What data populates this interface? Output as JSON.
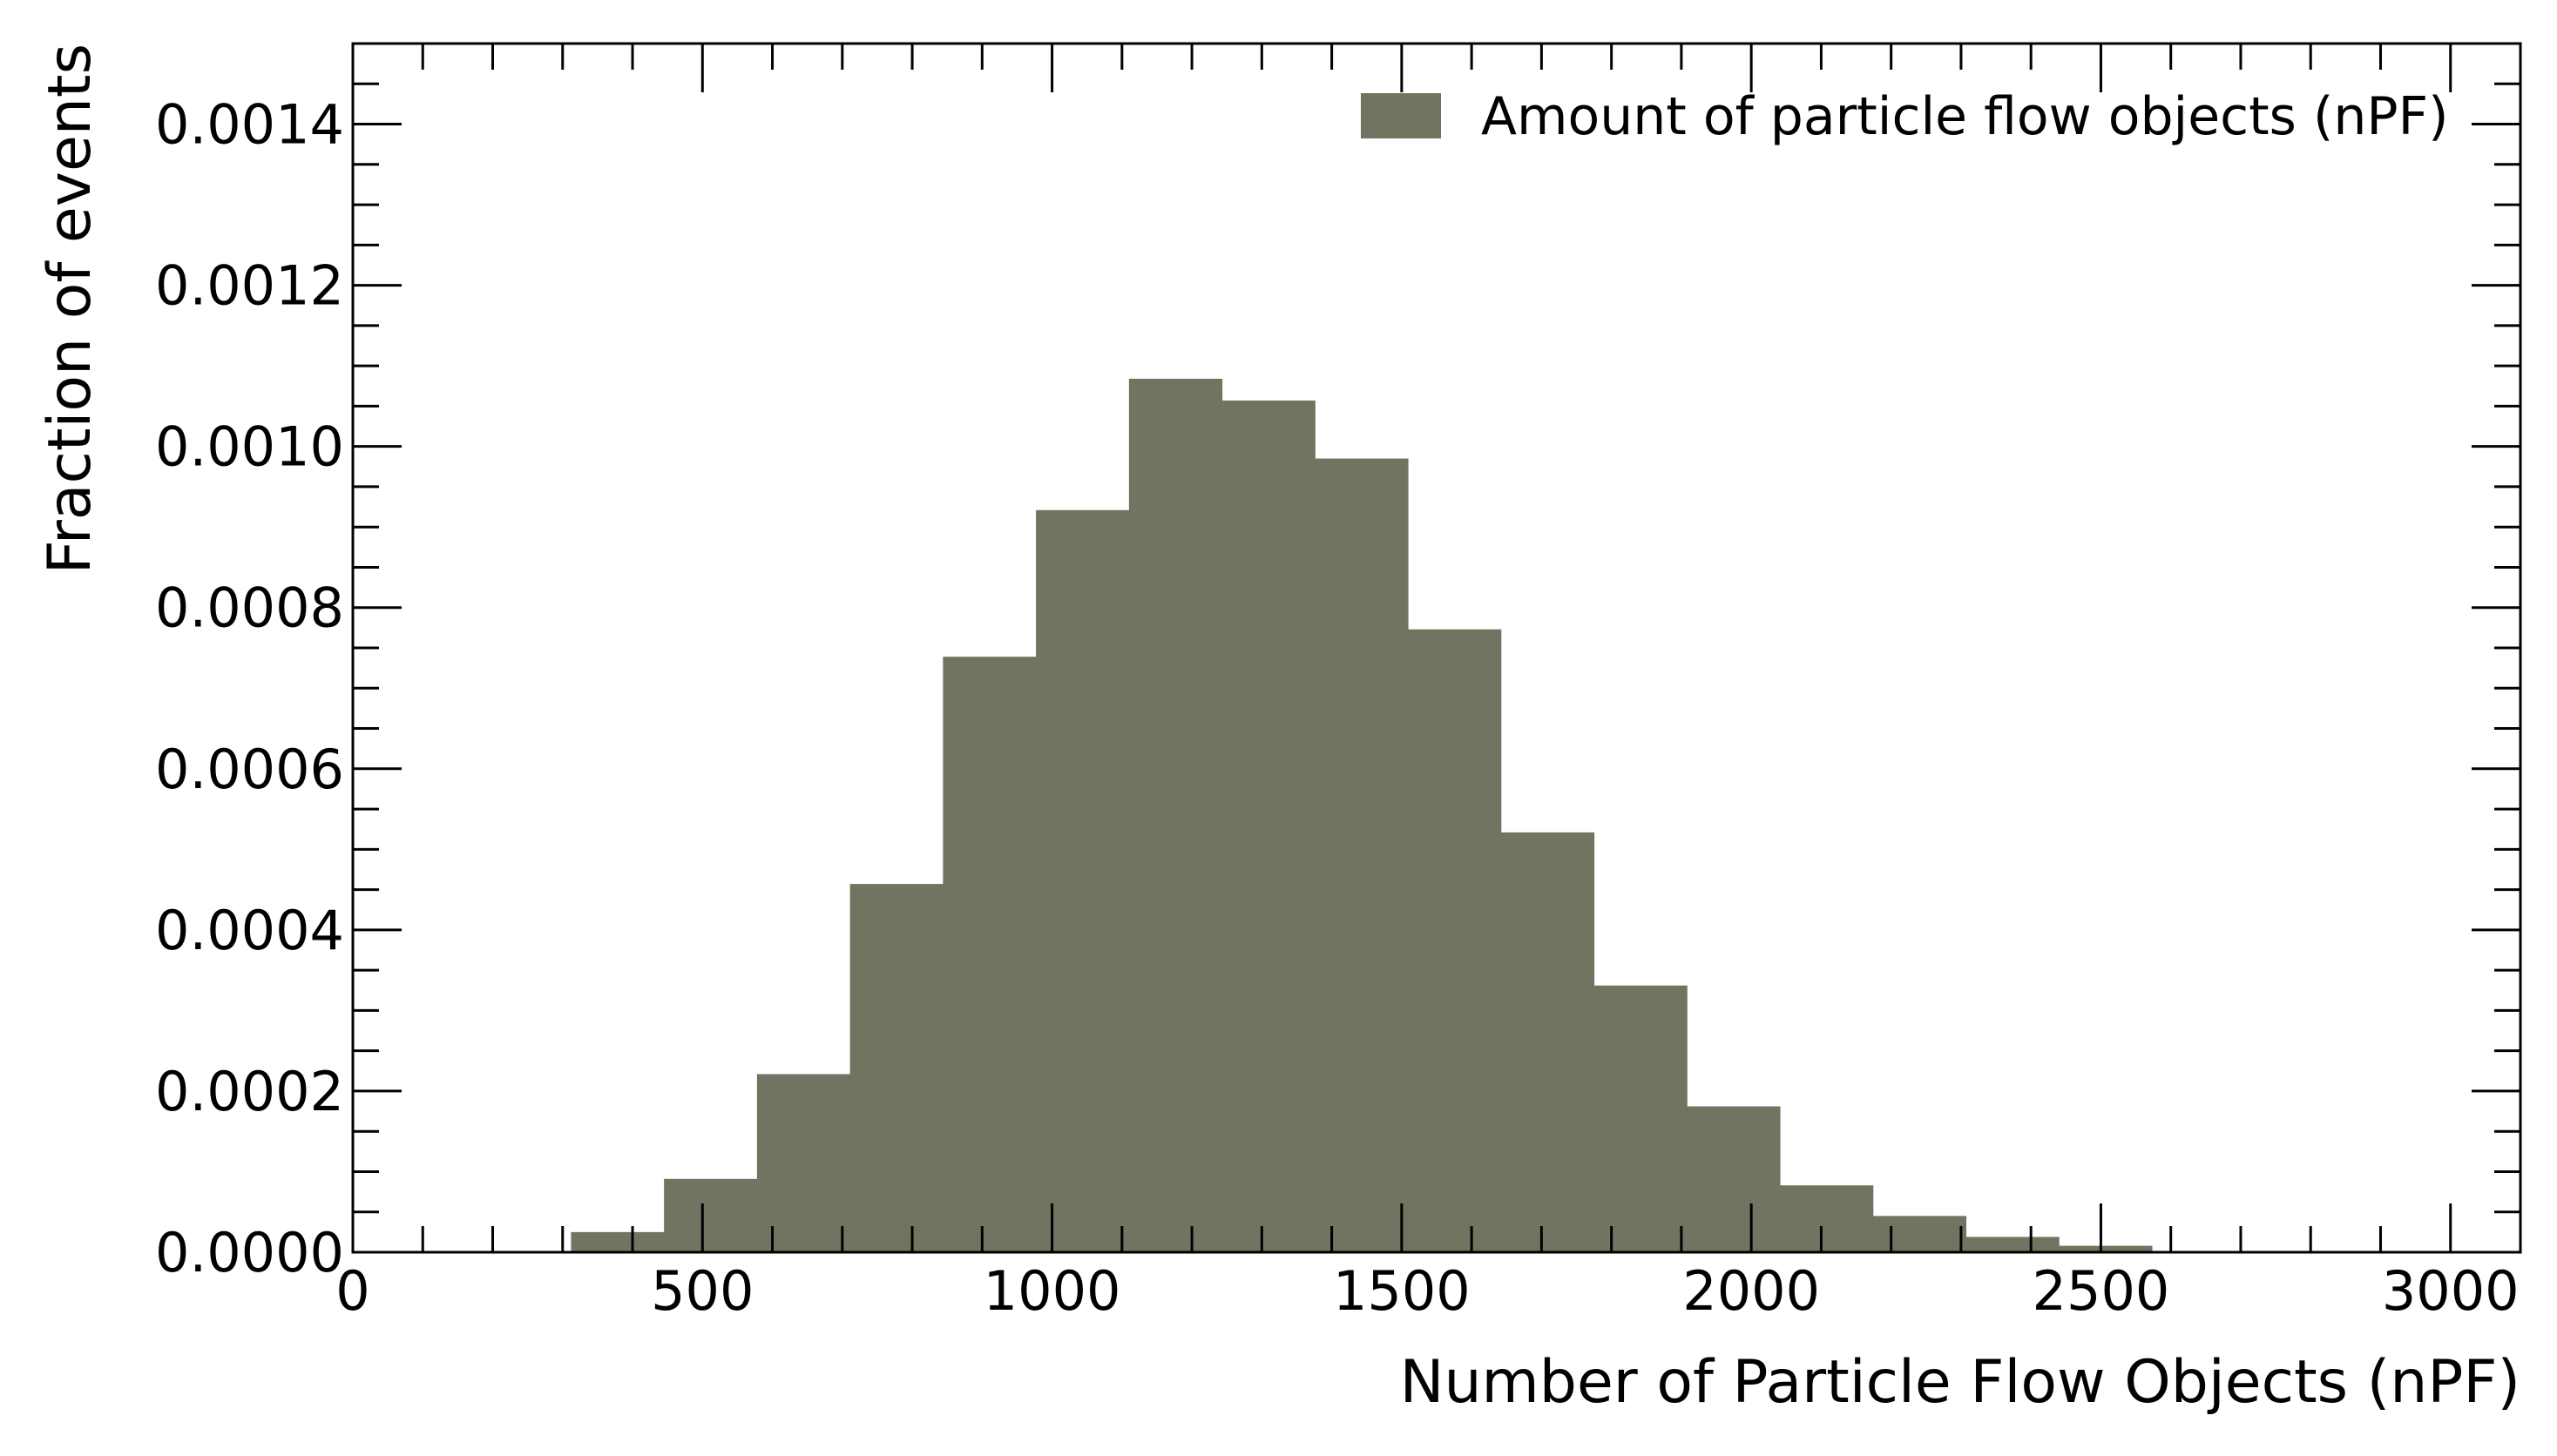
{
  "chart_data": {
    "type": "bar",
    "histogram": true,
    "xlabel": "Number of Particle Flow Objects (nPF)",
    "ylabel": "Fraction of events",
    "xlim": [
      0,
      3100
    ],
    "ylim": [
      0,
      0.0015
    ],
    "x_ticks": [
      0,
      500,
      1000,
      1500,
      2000,
      2500,
      3000
    ],
    "x_tick_labels": [
      "0",
      "500",
      "1000",
      "1500",
      "2000",
      "2500",
      "3000"
    ],
    "y_ticks": [
      0,
      0.0002,
      0.0004,
      0.0006,
      0.0008,
      0.001,
      0.0012,
      0.0014
    ],
    "y_tick_labels": [
      "0.0000",
      "0.0002",
      "0.0004",
      "0.0006",
      "0.0008",
      "0.0010",
      "0.0012",
      "0.0014"
    ],
    "grid": false,
    "legend_position": "top-right",
    "series": [
      {
        "name": "Amount of particle flow objects (nPF)",
        "color": "#727360",
        "bin_edges": [
          312,
          445,
          578,
          711,
          844,
          977,
          1110,
          1243,
          1376,
          1509,
          1642,
          1775,
          1908,
          2041,
          2174,
          2307,
          2440,
          2573
        ],
        "values": [
          2.5e-05,
          9.1e-05,
          0.000221,
          0.000457,
          0.000739,
          0.000921,
          0.001084,
          0.001057,
          0.000985,
          0.000773,
          0.000521,
          0.000331,
          0.000181,
          8.3e-05,
          4.5e-05,
          1.9e-05,
          8e-06
        ]
      }
    ]
  }
}
